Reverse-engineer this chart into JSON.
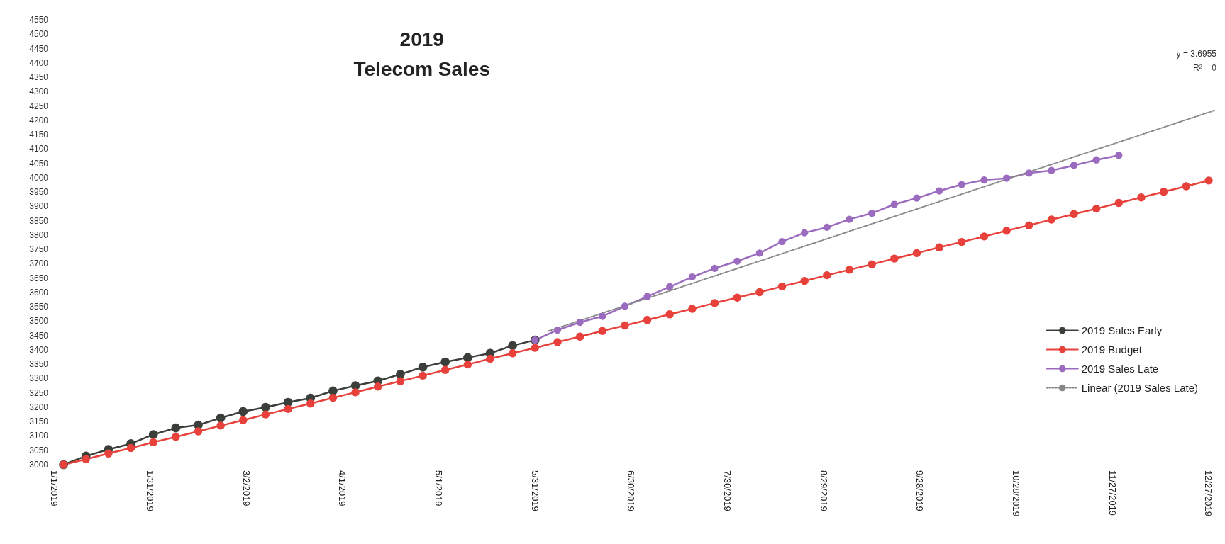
{
  "chart_data": {
    "type": "line",
    "title": "2019",
    "subtitle": "Telecom Sales",
    "x": [
      "2019-01-04",
      "2019-01-11",
      "2019-01-18",
      "2019-01-25",
      "2019-02-01",
      "2019-02-08",
      "2019-02-15",
      "2019-02-22",
      "2019-03-01",
      "2019-03-08",
      "2019-03-15",
      "2019-03-22",
      "2019-03-29",
      "2019-04-05",
      "2019-04-12",
      "2019-04-19",
      "2019-04-26",
      "2019-05-03",
      "2019-05-10",
      "2019-05-17",
      "2019-05-24",
      "2019-05-31",
      "2019-06-07",
      "2019-06-14",
      "2019-06-21",
      "2019-06-28",
      "2019-07-05",
      "2019-07-12",
      "2019-07-19",
      "2019-07-26",
      "2019-08-02",
      "2019-08-09",
      "2019-08-16",
      "2019-08-23",
      "2019-08-30",
      "2019-09-06",
      "2019-09-13",
      "2019-09-20",
      "2019-09-27",
      "2019-10-04",
      "2019-10-11",
      "2019-10-18",
      "2019-10-25",
      "2019-11-01",
      "2019-11-08",
      "2019-11-15",
      "2019-11-22",
      "2019-11-29",
      "2019-12-06",
      "2019-12-13",
      "2019-12-20",
      "2019-12-27"
    ],
    "series": [
      {
        "name": "2019 Sales Early",
        "color": "#3a3f3a",
        "values": [
          3000,
          3030,
          3053,
          3073,
          3105,
          3128,
          3138,
          3163,
          3185,
          3200,
          3217,
          3232,
          3257,
          3275,
          3292,
          3315,
          3340,
          3358,
          3373,
          3388,
          3415,
          3434,
          null,
          null,
          null,
          null,
          null,
          null,
          null,
          null,
          null,
          null,
          null,
          null,
          null,
          null,
          null,
          null,
          null,
          null,
          null,
          null,
          null,
          null,
          null,
          null,
          null,
          null,
          null,
          null,
          null,
          null
        ]
      },
      {
        "name": "2019 Budget",
        "color": "#e8413c",
        "values": [
          3000,
          3019,
          3039,
          3058,
          3078,
          3097,
          3116,
          3136,
          3155,
          3175,
          3194,
          3213,
          3233,
          3252,
          3272,
          3291,
          3310,
          3330,
          3349,
          3369,
          3388,
          3407,
          3427,
          3446,
          3466,
          3485,
          3504,
          3524,
          3543,
          3563,
          3582,
          3601,
          3621,
          3640,
          3660,
          3679,
          3698,
          3718,
          3737,
          3757,
          3776,
          3795,
          3815,
          3834,
          3854,
          3873,
          3892,
          3912,
          3931,
          3951,
          3970,
          3990
        ]
      },
      {
        "name": "2019 Sales Late",
        "color": "#9b6bbf",
        "values": [
          null,
          null,
          null,
          null,
          null,
          null,
          null,
          null,
          null,
          null,
          null,
          null,
          null,
          null,
          null,
          null,
          null,
          null,
          null,
          null,
          null,
          3434,
          3469,
          3496,
          3517,
          3552,
          3586,
          3620,
          3654,
          3684,
          3709,
          3737,
          3777,
          3808,
          3827,
          3855,
          3876,
          3907,
          3929,
          3954,
          3976,
          3992,
          3998,
          4016,
          4025,
          4043,
          4062,
          4078,
          null,
          null,
          null,
          null
        ]
      },
      {
        "name": "Linear (2019 Sales Late)",
        "color": "#888888",
        "marker": "none",
        "line_style": "dotted",
        "x": [
          "2019-06-04",
          "2019-12-29"
        ],
        "values": [
          3465,
          4235
        ]
      }
    ],
    "xlim": [
      "2019-01-01",
      "2019-12-29"
    ],
    "xticks": [
      {
        "value": "2019-01-01",
        "label": "1/1/2019"
      },
      {
        "value": "2019-01-31",
        "label": "1/31/2019"
      },
      {
        "value": "2019-03-02",
        "label": "3/2/2019"
      },
      {
        "value": "2019-04-01",
        "label": "4/1/2019"
      },
      {
        "value": "2019-05-01",
        "label": "5/1/2019"
      },
      {
        "value": "2019-05-31",
        "label": "5/31/2019"
      },
      {
        "value": "2019-06-30",
        "label": "6/30/2019"
      },
      {
        "value": "2019-07-30",
        "label": "7/30/2019"
      },
      {
        "value": "2019-08-29",
        "label": "8/29/2019"
      },
      {
        "value": "2019-09-28",
        "label": "9/28/2019"
      },
      {
        "value": "2019-10-28",
        "label": "10/28/2019"
      },
      {
        "value": "2019-11-27",
        "label": "11/27/2019"
      },
      {
        "value": "2019-12-27",
        "label": "12/27/2019"
      }
    ],
    "ylim": [
      3000,
      4550
    ],
    "yticks": [
      3000,
      3050,
      3100,
      3150,
      3200,
      3250,
      3300,
      3350,
      3400,
      3450,
      3500,
      3550,
      3600,
      3650,
      3700,
      3750,
      3800,
      3850,
      3900,
      3950,
      4000,
      4050,
      4100,
      4150,
      4200,
      4250,
      4300,
      4350,
      4400,
      4450,
      4500,
      4550
    ],
    "annotations": [
      "y = 3.6955",
      "R² = 0"
    ],
    "marker": "circle",
    "line_style": "solid",
    "grid": false,
    "legend": "bottom right"
  }
}
